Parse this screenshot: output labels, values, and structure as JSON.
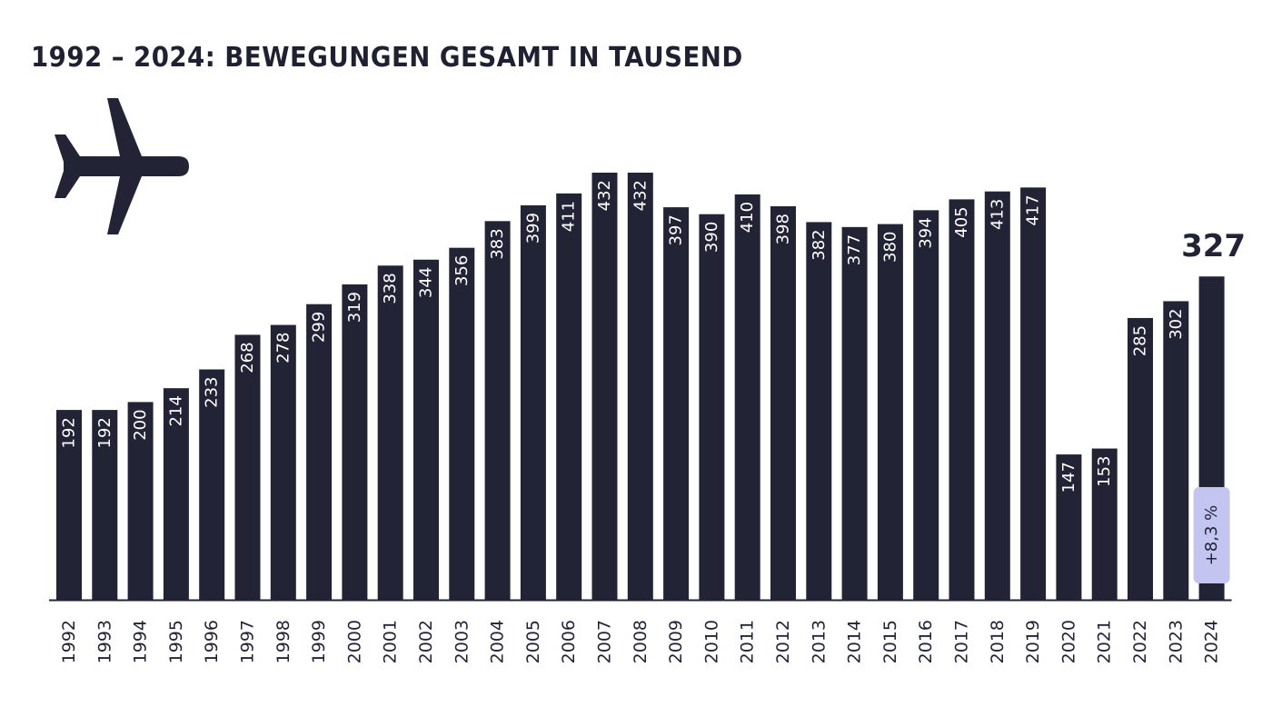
{
  "title": "1992 – 2024: BEWEGUNGEN GESAMT IN TAUSEND",
  "icon": "airplane-icon",
  "colors": {
    "bar": "#222436",
    "bar_label": "#ffffff",
    "highlight_badge_bg": "#c4c4f0",
    "highlight_badge_text": "#222436",
    "axis_line": "#222436",
    "year_label": "#222436"
  },
  "highlight": {
    "category": "2024",
    "value_label": "327",
    "change_badge": "+8,3 %"
  },
  "chart_data": {
    "type": "bar",
    "title": "1992 – 2024: BEWEGUNGEN GESAMT IN TAUSEND",
    "xlabel": "",
    "ylabel": "",
    "categories": [
      "1992",
      "1993",
      "1994",
      "1995",
      "1996",
      "1997",
      "1998",
      "1999",
      "2000",
      "2001",
      "2002",
      "2003",
      "2004",
      "2005",
      "2006",
      "2007",
      "2008",
      "2009",
      "2010",
      "2011",
      "2012",
      "2013",
      "2014",
      "2015",
      "2016",
      "2017",
      "2018",
      "2019",
      "2020",
      "2021",
      "2022",
      "2023",
      "2024"
    ],
    "values": [
      192,
      192,
      200,
      214,
      233,
      268,
      278,
      299,
      319,
      338,
      344,
      356,
      383,
      399,
      411,
      432,
      432,
      397,
      390,
      410,
      398,
      382,
      377,
      380,
      394,
      405,
      413,
      417,
      147,
      153,
      285,
      302,
      327
    ],
    "ylim": [
      0,
      432
    ],
    "grid": false,
    "legend": "none"
  }
}
